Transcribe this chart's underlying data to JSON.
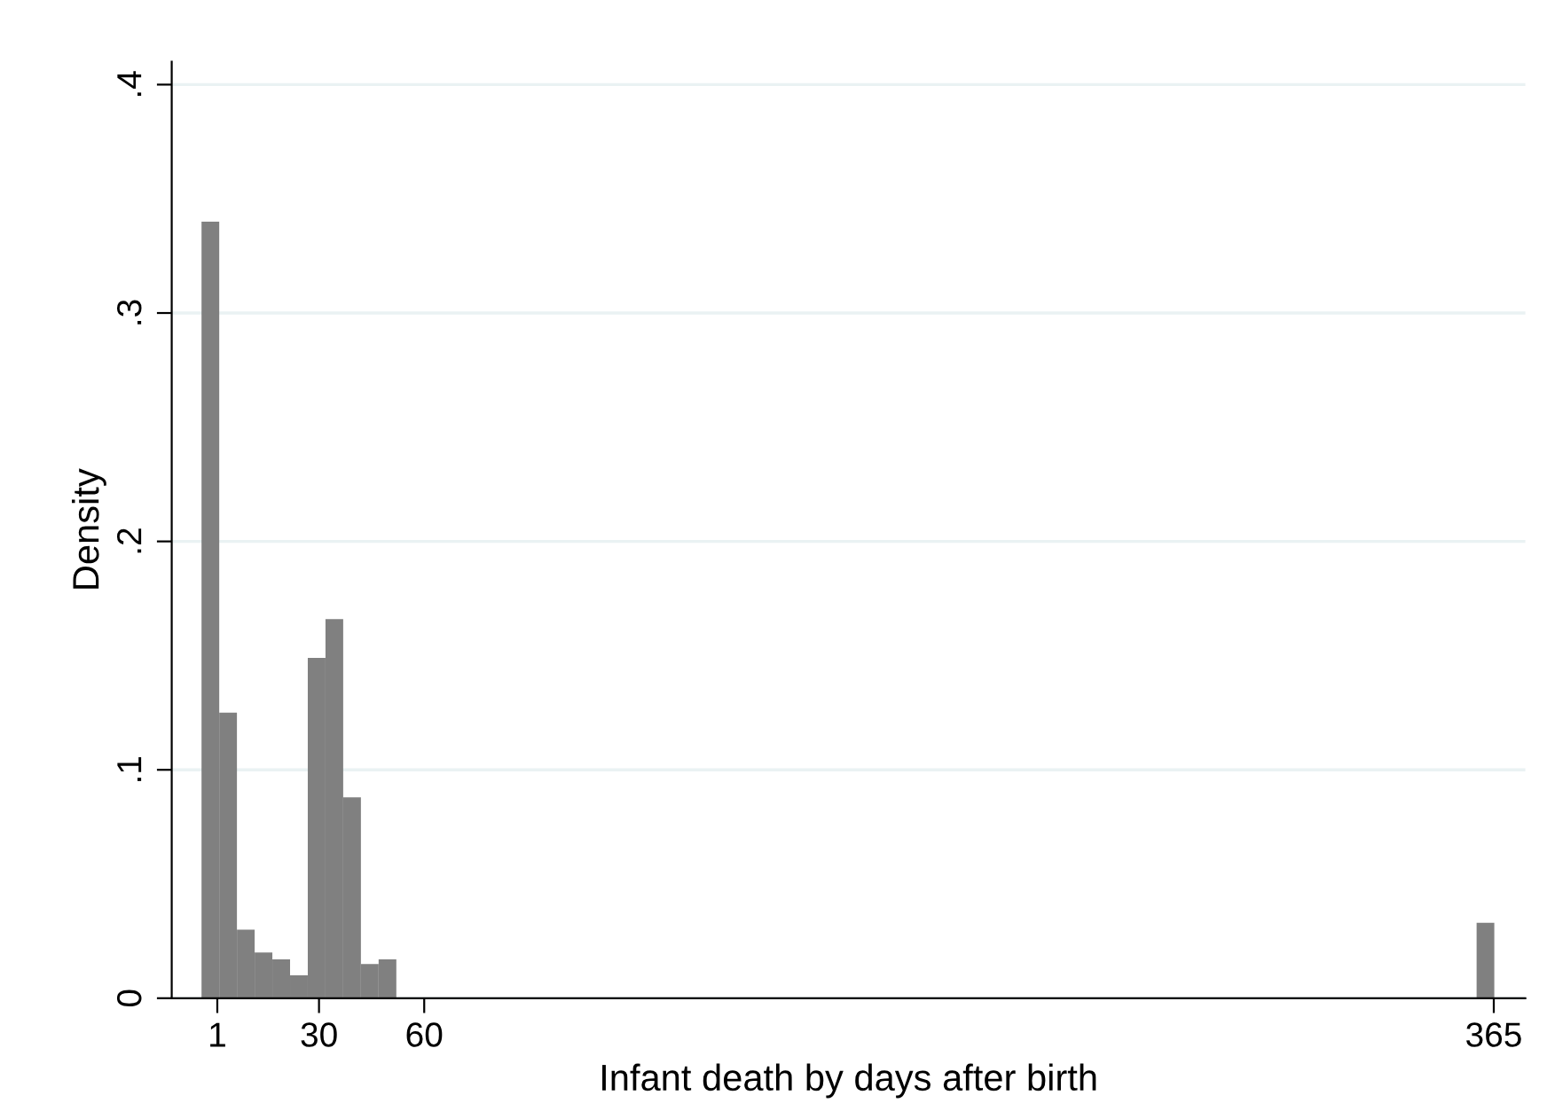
{
  "chart_data": {
    "type": "histogram",
    "xlabel": "Infant death by days after birth",
    "ylabel": "Density",
    "color": "#808080",
    "bins": [
      -3.5,
      1.55,
      6.6,
      11.65,
      16.7,
      21.75,
      26.8,
      31.85,
      36.9,
      41.95,
      47,
      52.05,
      57.1,
      62.15,
      67.2,
      72.25,
      77.3,
      82.35,
      87.4,
      92.45,
      97.5,
      102.55,
      107.6,
      112.65,
      117.7,
      122.75,
      127.8,
      132.85,
      137.9,
      142.95,
      148,
      153.05,
      158.1,
      163.15,
      168.2,
      173.25,
      178.3,
      183.35,
      188.4,
      193.45,
      198.5,
      203.55,
      208.6,
      213.65,
      218.7,
      223.75,
      228.8,
      233.85,
      238.9,
      243.95,
      249,
      254.05,
      259.1,
      264.15,
      269.2,
      274.25,
      279.3,
      284.35,
      289.4,
      294.45,
      299.5,
      304.55,
      309.6,
      314.65,
      319.7,
      324.75,
      329.8,
      334.85,
      339.9,
      344.95,
      350,
      355.05,
      360.1,
      365.15
    ],
    "values": [
      0.34,
      0.125,
      0.03,
      0.02,
      0.017,
      0.01,
      0.149,
      0.166,
      0.088,
      0.015,
      0.017,
      0,
      0,
      0,
      0,
      0,
      0,
      0,
      0,
      0,
      0,
      0,
      0,
      0,
      0,
      0,
      0,
      0,
      0,
      0,
      0,
      0,
      0,
      0,
      0,
      0,
      0,
      0,
      0,
      0,
      0,
      0,
      0,
      0,
      0,
      0,
      0,
      0,
      0,
      0,
      0,
      0,
      0,
      0,
      0,
      0,
      0,
      0,
      0,
      0,
      0,
      0,
      0,
      0,
      0,
      0,
      0,
      0,
      0,
      0,
      0,
      0,
      0.033
    ],
    "xlim": [
      -12,
      374
    ],
    "xticks": [
      1,
      30,
      60,
      365
    ],
    "ylim": [
      0,
      0.41
    ],
    "yticks": [
      {
        "value": 0,
        "label": "0"
      },
      {
        "value": 0.1,
        "label": ".1"
      },
      {
        "value": 0.2,
        "label": ".2"
      },
      {
        "value": 0.3,
        "label": ".3"
      },
      {
        "value": 0.4,
        "label": ".4"
      }
    ],
    "grid": "y"
  }
}
